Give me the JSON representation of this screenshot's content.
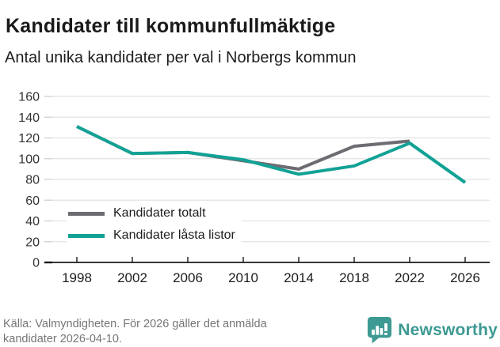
{
  "header": {
    "title": "Kandidater till kommunfullmäktige",
    "subtitle": "Antal unika kandidater per val i Norbergs kommun"
  },
  "chart_data": {
    "type": "line",
    "title": "Kandidater till kommunfullmäktige",
    "subtitle": "Antal unika kandidater per val i Norbergs kommun",
    "xlabel": "",
    "ylabel": "",
    "x": [
      1998,
      2002,
      2006,
      2010,
      2014,
      2018,
      2022,
      2026
    ],
    "series": [
      {
        "name": "Kandidater totalt",
        "color": "#6d6c72",
        "values": [
          131,
          105,
          106,
          98,
          90,
          112,
          117,
          null
        ]
      },
      {
        "name": "Kandidater låsta listor",
        "color": "#12a295",
        "values": [
          131,
          105,
          106,
          99,
          85,
          93,
          115,
          77
        ]
      }
    ],
    "ylim": [
      0,
      160
    ],
    "yticks": [
      0,
      20,
      40,
      60,
      80,
      100,
      120,
      140,
      160
    ],
    "grid": true,
    "legend_position": "inside-bottom-left"
  },
  "footer": {
    "source": "Källa: Valmyndigheten. För 2026 gäller det anmälda kandidater 2026-04-10.",
    "brand": "Newsworthy"
  },
  "colors": {
    "series_total": "#6d6c72",
    "series_locked": "#12a295",
    "brand_teal": "#3d9a93",
    "gridline": "#e2e2e2",
    "axis": "#1a1a1a",
    "text_dark": "#1a1a1a",
    "text_muted": "#767676"
  }
}
